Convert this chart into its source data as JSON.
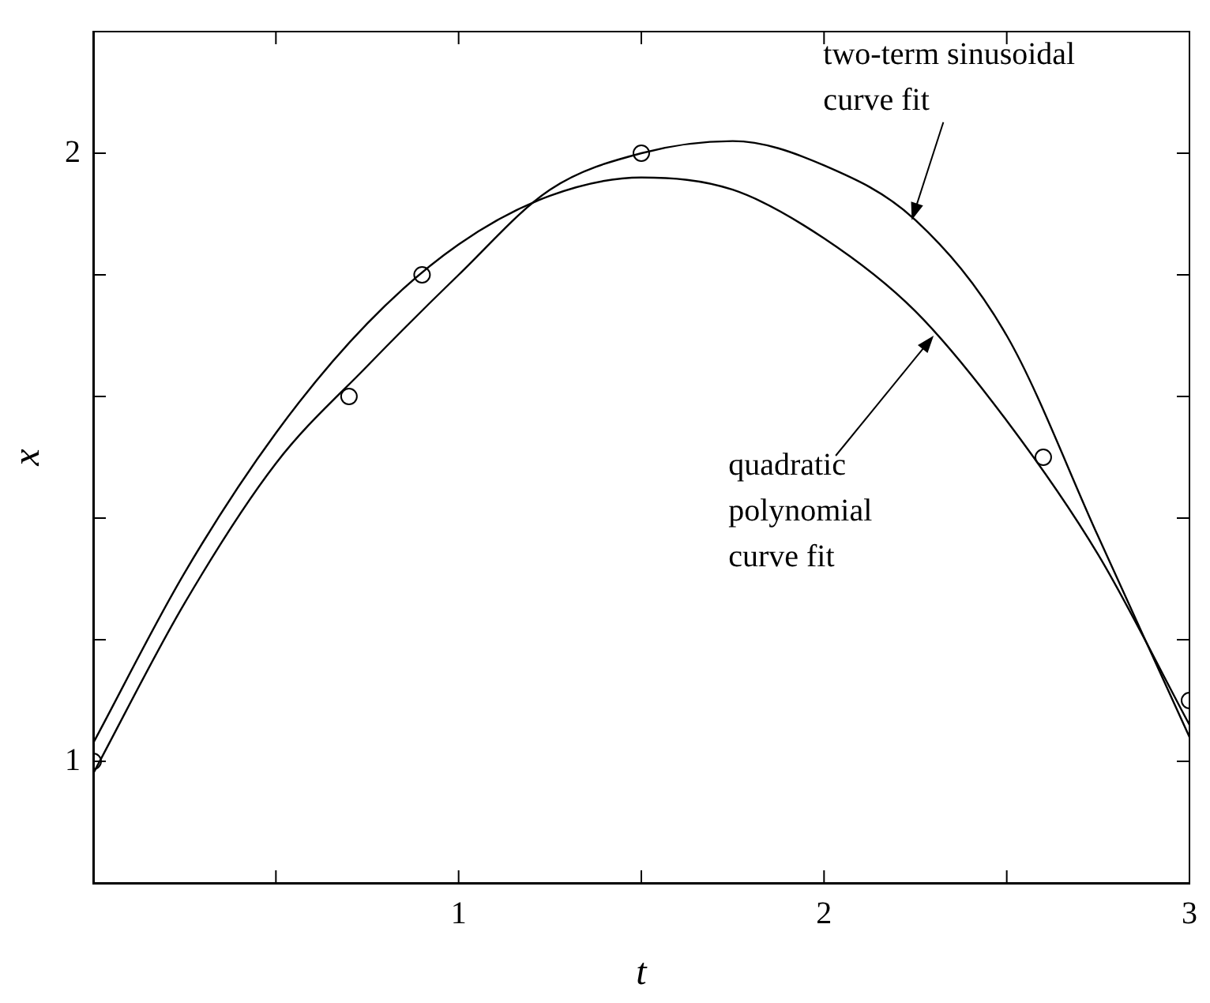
{
  "chart_data": {
    "type": "scatter",
    "xlabel": "t",
    "ylabel": "x",
    "xlim": [
      0,
      3
    ],
    "ylim": [
      0.8,
      2.2
    ],
    "xticks": [
      {
        "value": 0.5,
        "label": null
      },
      1,
      {
        "value": 1.5,
        "label": null
      },
      2,
      {
        "value": 2.5,
        "label": null
      },
      3
    ],
    "yticks": [
      1,
      {
        "value": 1.2,
        "label": null
      },
      {
        "value": 1.4,
        "label": null
      },
      {
        "value": 1.6,
        "label": null
      },
      {
        "value": 1.8,
        "label": null
      },
      2
    ],
    "grid": false,
    "legend": false,
    "series": [
      {
        "color": "#000000",
        "marker": "circle",
        "x": [
          0,
          0.7,
          0.9,
          1.5,
          2.6,
          3.0
        ],
        "values": [
          1.0,
          1.6,
          1.8,
          2.0,
          1.5,
          1.1
        ]
      },
      {
        "type": "line",
        "color": "#000000",
        "marker": "none",
        "x": [
          0,
          0.25,
          0.5,
          0.75,
          1.0,
          1.25,
          1.5,
          1.75,
          2.0,
          2.25,
          2.5,
          2.75,
          3.0
        ],
        "values": [
          0.98,
          1.26,
          1.49,
          1.65,
          1.8,
          1.94,
          2.0,
          2.02,
          1.98,
          1.89,
          1.7,
          1.37,
          1.04
        ]
      },
      {
        "type": "line",
        "color": "#000000",
        "marker": "none",
        "x": [
          0,
          0.25,
          0.5,
          0.75,
          1.0,
          1.25,
          1.5,
          1.75,
          2.0,
          2.25,
          2.5,
          2.75,
          3.0
        ],
        "values": [
          1.03,
          1.31,
          1.54,
          1.72,
          1.85,
          1.93,
          1.96,
          1.94,
          1.86,
          1.74,
          1.56,
          1.34,
          1.06
        ]
      }
    ],
    "annotations": [
      {
        "text": "two-term sinusoidal\ncurve fit",
        "x": 2.24,
        "y": 1.89
      },
      {
        "text": "quadratic\npolynomial\ncurve fit",
        "x": 2.3,
        "y": 1.7
      }
    ]
  }
}
